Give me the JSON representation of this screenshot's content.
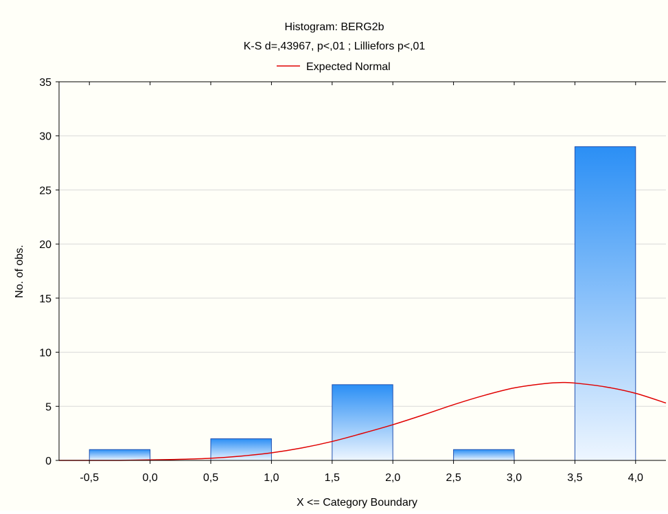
{
  "chart_data": {
    "type": "bar",
    "title": "Histogram: BERG2b",
    "subtitle": "K-S d=,43967, p<,01 ; Lilliefors p<,01",
    "xlabel": "X <= Category Boundary",
    "ylabel": "No. of obs.",
    "legend": {
      "entries": [
        "Expected Normal"
      ],
      "placement": "top-center"
    },
    "grid": true,
    "xlim": [
      -0.75,
      4.25
    ],
    "ylim": [
      0,
      35
    ],
    "x_ticks": [
      "-0,5",
      "0,0",
      "0,5",
      "1,0",
      "1,5",
      "2,0",
      "2,5",
      "3,0",
      "3,5",
      "4,0"
    ],
    "x_tick_values": [
      -0.5,
      0.0,
      0.5,
      1.0,
      1.5,
      2.0,
      2.5,
      3.0,
      3.5,
      4.0
    ],
    "y_ticks": [
      "0",
      "5",
      "10",
      "15",
      "20",
      "25",
      "30",
      "35"
    ],
    "y_tick_values": [
      0,
      5,
      10,
      15,
      20,
      25,
      30,
      35
    ],
    "bins": [
      {
        "from": -0.5,
        "to": 0.0,
        "value": 1
      },
      {
        "from": 0.0,
        "to": 0.5,
        "value": 0
      },
      {
        "from": 0.5,
        "to": 1.0,
        "value": 2
      },
      {
        "from": 1.0,
        "to": 1.5,
        "value": 0
      },
      {
        "from": 1.5,
        "to": 2.0,
        "value": 7
      },
      {
        "from": 2.0,
        "to": 2.5,
        "value": 0
      },
      {
        "from": 2.5,
        "to": 3.0,
        "value": 1
      },
      {
        "from": 3.0,
        "to": 3.5,
        "value": 0
      },
      {
        "from": 3.5,
        "to": 4.0,
        "value": 29
      }
    ],
    "series": [
      {
        "name": "Expected Normal",
        "type": "line",
        "x": [
          -0.75,
          -0.5,
          -0.25,
          0.0,
          0.25,
          0.5,
          0.75,
          1.0,
          1.25,
          1.5,
          1.75,
          2.0,
          2.25,
          2.5,
          2.75,
          3.0,
          3.25,
          3.4,
          3.5,
          3.75,
          4.0,
          4.25
        ],
        "y": [
          0.0,
          0.0,
          0.0,
          0.05,
          0.1,
          0.2,
          0.4,
          0.7,
          1.15,
          1.75,
          2.5,
          3.3,
          4.2,
          5.15,
          6.0,
          6.7,
          7.1,
          7.2,
          7.15,
          6.8,
          6.2,
          5.3
        ]
      }
    ],
    "colors": {
      "bar_top": "#2b8ff5",
      "bar_bottom": "#eef6ff",
      "bar_stroke": "#1f4fb0",
      "curve": "#e00000",
      "grid": "#d8d8d8"
    }
  }
}
